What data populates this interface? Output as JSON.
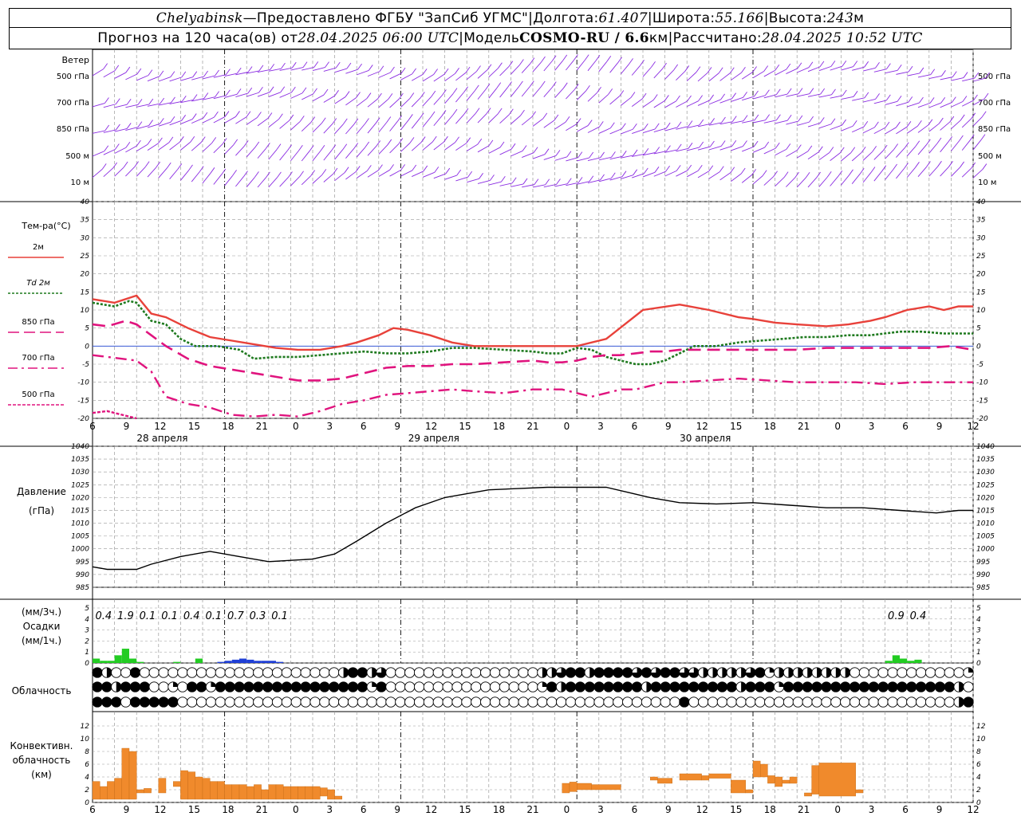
{
  "header": {
    "station": "Chelyabinsk",
    "dash": " — ",
    "provider": "Предоставлено ФГБУ \"ЗапСиб УГМС\"",
    "sep": " | ",
    "lon_label": "Долгота: ",
    "lon_value": "61.407",
    "lat_label": "Широта: ",
    "lat_value": "55.166",
    "alt_label": "Высота: ",
    "alt_value": "243",
    "alt_unit": "м",
    "forecast_prefix": "Прогноз на 120 часа(ов) от ",
    "forecast_time": "28.04.2025 06:00 UTC",
    "model_label": "Модель ",
    "model_name": "COSMO-RU / 6.6",
    "model_unit": "км",
    "calc_label": "Рассчитано: ",
    "calc_time": "28.04.2025 10:52 UTC"
  },
  "colors": {
    "wind": "#8a2be2",
    "t2m": "#e8413a",
    "td2m": "#1f7a1f",
    "t850": "#e0147e",
    "precip_rain": "#22cc22",
    "precip_snow": "#1f3fd6",
    "convective": "#f08a2c",
    "grid": "#999999"
  },
  "chart_data": {
    "type": "meteogram",
    "x_ticks": [
      "6",
      "9",
      "12",
      "15",
      "18",
      "21",
      "0",
      "3",
      "6",
      "9",
      "12",
      "15",
      "18",
      "21",
      "0",
      "3",
      "6",
      "9",
      "12",
      "15",
      "18",
      "21",
      "0",
      "3",
      "6",
      "9",
      "12"
    ],
    "day_labels": [
      "28 апреля",
      "29 апреля",
      "30 апреля"
    ],
    "wind": {
      "label": "Ветер",
      "levels": [
        "500 гПа",
        "700 гПа",
        "850 гПа",
        "500 м",
        "10  м"
      ]
    },
    "temperature": {
      "label": "Тем-ра(°C)",
      "ylim": [
        -20,
        40
      ],
      "yticks": [
        40,
        35,
        30,
        25,
        20,
        15,
        10,
        5,
        0,
        -5,
        -10,
        -15,
        -20
      ],
      "legend": [
        {
          "name": "2м",
          "color": "#e8413a",
          "dash": "solid"
        },
        {
          "name": "Td  2м",
          "color": "#1f7a1f",
          "dash": "dot"
        },
        {
          "name": "850 гПа",
          "color": "#e0147e",
          "dash": "long"
        },
        {
          "name": "700 гПа",
          "color": "#e0147e",
          "dash": "dashdot"
        },
        {
          "name": "500 гПа",
          "color": "#e0147e",
          "dash": "dense"
        }
      ],
      "series": [
        {
          "name": "2м",
          "x": [
            0,
            3,
            4.5,
            6,
            8,
            10,
            13,
            16,
            19,
            22,
            25,
            28,
            31,
            34,
            36,
            39,
            41,
            43,
            46,
            49,
            52,
            55,
            58,
            62,
            66,
            70,
            75,
            80,
            84,
            88,
            90,
            93,
            96,
            100,
            103,
            106,
            108,
            111,
            114,
            116,
            118,
            120
          ],
          "y": [
            13,
            12,
            13,
            14,
            9,
            8,
            5,
            2.5,
            1.5,
            0.5,
            -0.5,
            -1,
            -1,
            0,
            1,
            3,
            5,
            4.5,
            3,
            1,
            0,
            0,
            0,
            0,
            0,
            2,
            10,
            11.5,
            10,
            8,
            7.5,
            6.5,
            6,
            5.5,
            6,
            7,
            8,
            10,
            11,
            10,
            11,
            11
          ]
        },
        {
          "name": "Td  2м",
          "x": [
            0,
            3,
            5,
            6,
            8,
            10,
            12,
            14,
            17,
            20,
            22,
            25,
            28,
            31,
            34,
            37,
            40,
            43,
            46,
            49,
            52,
            56,
            60,
            62,
            64,
            66,
            68,
            70,
            72,
            74,
            76,
            78,
            80,
            82,
            85,
            88,
            91,
            94,
            97,
            100,
            103,
            106,
            110,
            113,
            116,
            120
          ],
          "y": [
            12,
            11,
            12.5,
            12,
            7,
            6,
            2,
            0,
            0,
            -1,
            -3.5,
            -3,
            -3,
            -2.5,
            -2,
            -1.5,
            -2,
            -2,
            -1.5,
            -0.5,
            -0.5,
            -1,
            -1.5,
            -2,
            -2,
            -0.5,
            -1,
            -3,
            -4,
            -5,
            -5,
            -4,
            -2,
            0,
            0,
            1,
            1.5,
            2,
            2.5,
            2.5,
            3,
            3,
            4,
            4,
            3.5,
            3.5
          ]
        },
        {
          "name": "850 гПа",
          "x": [
            0,
            2,
            4.5,
            6,
            8,
            10,
            13,
            16,
            19,
            22,
            25,
            28,
            31,
            34,
            37,
            40,
            43,
            46,
            49,
            52,
            56,
            60,
            62,
            64,
            66,
            68,
            70,
            72,
            74,
            76,
            78,
            80,
            83,
            86,
            90,
            93,
            96,
            100,
            104,
            108,
            111,
            114,
            117,
            120
          ],
          "y": [
            6,
            5.5,
            7,
            6,
            3,
            0,
            -3.5,
            -5.5,
            -6.5,
            -7.5,
            -8.5,
            -9.5,
            -9.5,
            -9,
            -7.5,
            -6,
            -5.5,
            -5.5,
            -5,
            -5,
            -4.5,
            -4,
            -4.5,
            -4.5,
            -4,
            -3,
            -2.5,
            -2.5,
            -2,
            -1.5,
            -1.5,
            -1,
            -1,
            -1,
            -1,
            -1,
            -1,
            -0.5,
            -0.5,
            -0.5,
            -0.5,
            -0.5,
            0,
            -1
          ]
        },
        {
          "name": "700 гПа",
          "x": [
            0,
            2,
            4,
            6,
            8,
            10,
            13,
            16,
            19,
            22,
            25,
            28,
            31,
            34,
            37,
            40,
            43,
            46,
            49,
            52,
            56,
            60,
            62,
            64,
            66,
            68,
            70,
            72,
            74,
            76,
            78,
            80,
            84,
            88,
            92,
            96,
            100,
            104,
            108,
            112,
            116,
            120
          ],
          "y": [
            -2.5,
            -3,
            -3.5,
            -4,
            -7,
            -14,
            -16,
            -17,
            -19,
            -19.5,
            -19,
            -19.5,
            -18,
            -16,
            -15,
            -13.5,
            -13,
            -12.5,
            -12,
            -12.5,
            -13,
            -12,
            -12,
            -12,
            -13,
            -14,
            -13,
            -12,
            -12,
            -11,
            -10,
            -10,
            -9.5,
            -9,
            -9.5,
            -10,
            -10,
            -10,
            -10.5,
            -10,
            -10,
            -10
          ]
        },
        {
          "name": "500 гПа",
          "x": [
            0,
            2,
            4,
            6
          ],
          "y": [
            -18.5,
            -18,
            -19,
            -20
          ]
        }
      ]
    },
    "pressure": {
      "label": "Давление",
      "unit": "(гПа)",
      "ylim": [
        985,
        1040
      ],
      "yticks": [
        1040,
        1035,
        1030,
        1025,
        1020,
        1015,
        1010,
        1005,
        1000,
        995,
        990,
        985
      ],
      "x": [
        0,
        2,
        6,
        8,
        12,
        16,
        20,
        24,
        27,
        30,
        33,
        36,
        40,
        44,
        48,
        54,
        58,
        62,
        67,
        70,
        73,
        76,
        80,
        85,
        90,
        95,
        100,
        105,
        110,
        115,
        118,
        120
      ],
      "y": [
        993,
        992,
        992,
        994,
        997,
        999,
        997,
        995,
        995.5,
        996,
        998,
        1003,
        1010,
        1016,
        1020,
        1023,
        1023.5,
        1024,
        1024,
        1024,
        1022,
        1020,
        1018,
        1017.5,
        1018,
        1017,
        1016,
        1016,
        1015,
        1014,
        1015,
        1015
      ]
    },
    "precipitation": {
      "label": "Осадки",
      "unit_top": "(мм/3ч.)",
      "unit_bottom": "(мм/1ч.)",
      "ylim": [
        0,
        5
      ],
      "yticks": [
        5,
        4,
        3,
        2,
        1,
        0
      ],
      "totals_3h": [
        {
          "x": 1.5,
          "text": "0.4"
        },
        {
          "x": 4.5,
          "text": "1.9"
        },
        {
          "x": 7.5,
          "text": "0.1"
        },
        {
          "x": 10.5,
          "text": "0.1"
        },
        {
          "x": 13.5,
          "text": "0.4"
        },
        {
          "x": 16.5,
          "text": "0.1"
        },
        {
          "x": 19.5,
          "text": "0.7"
        },
        {
          "x": 22.5,
          "text": "0.3"
        },
        {
          "x": 25.5,
          "text": "0.1"
        },
        {
          "x": 109.5,
          "text": "0.9"
        },
        {
          "x": 112.5,
          "text": "0.4"
        }
      ],
      "hourly_rain": {
        "x": [
          0,
          1,
          2,
          3,
          4,
          5,
          6,
          11,
          14,
          108,
          109,
          110,
          111,
          112
        ],
        "y": [
          0.4,
          0.2,
          0.2,
          0.7,
          1.3,
          0.4,
          0.1,
          0.1,
          0.4,
          0.2,
          0.7,
          0.4,
          0.2,
          0.3
        ]
      },
      "hourly_snow": {
        "x": [
          17,
          18,
          19,
          20,
          21,
          22,
          23,
          24,
          25
        ],
        "y": [
          0.1,
          0.2,
          0.3,
          0.4,
          0.3,
          0.2,
          0.2,
          0.2,
          0.1
        ]
      }
    },
    "cloudiness": {
      "label": "Облачность",
      "levels": [
        "high",
        "middle",
        "low"
      ],
      "high": "8 4 0 0 8 0 0 0 0 0 0 0 0 0 0 0 0 0 0 0 0 0 0 0 0 0 4 8 8 4 6 0 0 0 0 0 0 0 0 0 0 0 0 0 0 0 0 5 4 6 8 8 4 8 8 8 8 6 8 6 8 8 6 6 4 4 4 4 4 6 8 2 4 4 4 4 4 4 4 4 0 0 0 0 0 0 0 0 0 0 0 0 2",
      "middle": "8 8 4 8 8 8 0 0 2 0 8 8 2 8 8 8 8 8 8 8 8 8 8 8 8 8 8 8 8 2 8 0 0 0 0 0 0 0 0 0 0 0 0 0 0 0 0 2 8 4 8 8 8 8 8 8 8 8 4 8 8 8 8 8 8 8 8 8 4 8 8 8 2 8 8 8 8 8 8 8 8 8 8 8 8 8 8 8 8 8 8 4 0",
      "low": "8 8 8 0 8 8 8 8 8 0 0 0 0 0 0 0 0 0 0 0 0 0 0 0 0 0 0 0 0 0 0 0 0 0 0 0 0 0 0 0 0 0 0 0 0 0 0 0 0 0 0 0 0 0 0 0 0 0 0 0 0 0 8 0 0 0 0 0 0 0 0 0 0 0 0 0 0 0 0 0 0 0 0 0 0 0 0 0 0 0 0 4 8"
    },
    "convective": {
      "label_lines": [
        "Конвективн.",
        "облачность",
        "(км)"
      ],
      "ylim": [
        0,
        13
      ],
      "yticks": [
        12,
        10,
        8,
        6,
        4,
        2,
        0
      ],
      "bars": [
        {
          "x0": 0,
          "x1": 1,
          "lo": 0.5,
          "hi": 3.3
        },
        {
          "x0": 1,
          "x1": 2,
          "lo": 0.5,
          "hi": 2.5
        },
        {
          "x0": 2,
          "x1": 3,
          "lo": 0.5,
          "hi": 3.3
        },
        {
          "x0": 3,
          "x1": 4,
          "lo": 0.5,
          "hi": 3.8
        },
        {
          "x0": 4,
          "x1": 5,
          "lo": 0.5,
          "hi": 8.5
        },
        {
          "x0": 5,
          "x1": 6,
          "lo": 0.5,
          "hi": 8
        },
        {
          "x0": 6,
          "x1": 7,
          "lo": 1.5,
          "hi": 2
        },
        {
          "x0": 7,
          "x1": 8,
          "lo": 1.5,
          "hi": 2.2
        },
        {
          "x0": 9,
          "x1": 10,
          "lo": 1.5,
          "hi": 3.8
        },
        {
          "x0": 11,
          "x1": 12,
          "lo": 2.5,
          "hi": 3.3
        },
        {
          "x0": 12,
          "x1": 13,
          "lo": 0.5,
          "hi": 5
        },
        {
          "x0": 13,
          "x1": 14,
          "lo": 0.5,
          "hi": 4.8
        },
        {
          "x0": 14,
          "x1": 15,
          "lo": 0.5,
          "hi": 4
        },
        {
          "x0": 15,
          "x1": 16,
          "lo": 0.5,
          "hi": 3.8
        },
        {
          "x0": 16,
          "x1": 17,
          "lo": 0.5,
          "hi": 3.3
        },
        {
          "x0": 17,
          "x1": 18,
          "lo": 0.5,
          "hi": 3.3
        },
        {
          "x0": 18,
          "x1": 19,
          "lo": 0.5,
          "hi": 2.8
        },
        {
          "x0": 19,
          "x1": 20,
          "lo": 0.5,
          "hi": 2.8
        },
        {
          "x0": 20,
          "x1": 21,
          "lo": 0.5,
          "hi": 2.8
        },
        {
          "x0": 21,
          "x1": 22,
          "lo": 0.5,
          "hi": 2.5
        },
        {
          "x0": 22,
          "x1": 23,
          "lo": 0.5,
          "hi": 2.8
        },
        {
          "x0": 23,
          "x1": 24,
          "lo": 0.5,
          "hi": 2
        },
        {
          "x0": 24,
          "x1": 25,
          "lo": 0.5,
          "hi": 2.8
        },
        {
          "x0": 25,
          "x1": 26,
          "lo": 0.5,
          "hi": 2.8
        },
        {
          "x0": 26,
          "x1": 27,
          "lo": 0.5,
          "hi": 2.5
        },
        {
          "x0": 27,
          "x1": 28,
          "lo": 0.5,
          "hi": 2.5
        },
        {
          "x0": 28,
          "x1": 29,
          "lo": 0.5,
          "hi": 2.5
        },
        {
          "x0": 29,
          "x1": 30,
          "lo": 0.5,
          "hi": 2.5
        },
        {
          "x0": 30,
          "x1": 31,
          "lo": 0.5,
          "hi": 2.5
        },
        {
          "x0": 31,
          "x1": 32,
          "lo": 1,
          "hi": 2.3
        },
        {
          "x0": 32,
          "x1": 33,
          "lo": 0.5,
          "hi": 2
        },
        {
          "x0": 33,
          "x1": 34,
          "lo": 0.5,
          "hi": 1
        },
        {
          "x0": 64,
          "x1": 65,
          "lo": 1.5,
          "hi": 3
        },
        {
          "x0": 65,
          "x1": 66,
          "lo": 1.7,
          "hi": 3.2
        },
        {
          "x0": 66,
          "x1": 68,
          "lo": 2,
          "hi": 3
        },
        {
          "x0": 68,
          "x1": 72,
          "lo": 2,
          "hi": 2.8
        },
        {
          "x0": 76,
          "x1": 77,
          "lo": 3.5,
          "hi": 4
        },
        {
          "x0": 77,
          "x1": 79,
          "lo": 3,
          "hi": 3.8
        },
        {
          "x0": 80,
          "x1": 83,
          "lo": 3.5,
          "hi": 4.5
        },
        {
          "x0": 83,
          "x1": 84,
          "lo": 3.5,
          "hi": 4.2
        },
        {
          "x0": 84,
          "x1": 87,
          "lo": 3.8,
          "hi": 4.5
        },
        {
          "x0": 87,
          "x1": 89,
          "lo": 1.5,
          "hi": 3.5
        },
        {
          "x0": 89,
          "x1": 90,
          "lo": 1.5,
          "hi": 2
        },
        {
          "x0": 90,
          "x1": 91,
          "lo": 4,
          "hi": 6.5
        },
        {
          "x0": 91,
          "x1": 92,
          "lo": 4,
          "hi": 6
        },
        {
          "x0": 92,
          "x1": 93,
          "lo": 3,
          "hi": 4.2
        },
        {
          "x0": 93,
          "x1": 94,
          "lo": 2.5,
          "hi": 4
        },
        {
          "x0": 94,
          "x1": 95,
          "lo": 3,
          "hi": 3.5
        },
        {
          "x0": 95,
          "x1": 96,
          "lo": 3,
          "hi": 4
        },
        {
          "x0": 97,
          "x1": 98,
          "lo": 1,
          "hi": 1.5
        },
        {
          "x0": 98,
          "x1": 99,
          "lo": 1.3,
          "hi": 5.8
        },
        {
          "x0": 99,
          "x1": 104,
          "lo": 1,
          "hi": 6.2
        },
        {
          "x0": 104,
          "x1": 105,
          "lo": 1.5,
          "hi": 2
        }
      ]
    }
  }
}
